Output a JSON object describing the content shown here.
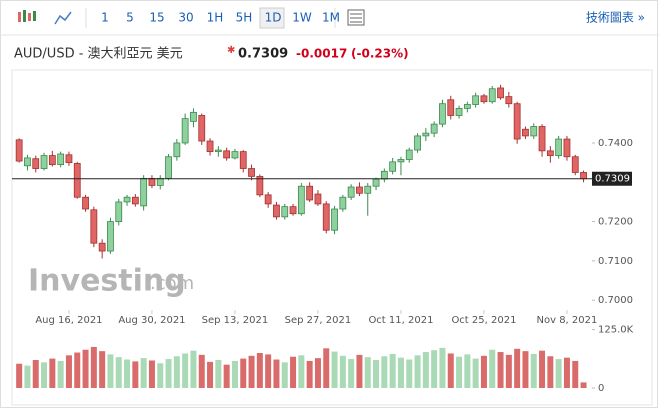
{
  "toolbar": {
    "intervals": [
      "1",
      "5",
      "15",
      "30",
      "1H",
      "5H",
      "1D",
      "1W",
      "1M"
    ],
    "selected": 6,
    "link": "技術圖表 »"
  },
  "header": {
    "symbol": "AUD/USD - 澳大利亞元 美元",
    "price": "0.7309",
    "change": "-0.0017",
    "change_pct": "(-0.23%)"
  },
  "watermark": {
    "brand": "Investing",
    "suffix": ".com"
  },
  "chart_data": {
    "type": "candlestick",
    "categories": [
      null,
      null,
      null,
      null,
      null,
      null,
      "Aug 16, 2021",
      null,
      null,
      null,
      null,
      null,
      null,
      null,
      null,
      null,
      "Aug 30, 2021",
      null,
      null,
      null,
      null,
      null,
      null,
      null,
      null,
      null,
      "Sep 13, 2021",
      null,
      null,
      null,
      null,
      null,
      null,
      null,
      null,
      null,
      "Sep 27, 2021",
      null,
      null,
      null,
      null,
      null,
      null,
      null,
      null,
      null,
      "Oct 11, 2021",
      null,
      null,
      null,
      null,
      null,
      null,
      null,
      null,
      null,
      "Oct 25, 2021",
      null,
      null,
      null,
      null,
      null,
      null,
      null,
      null,
      null,
      "Nov 8, 2021",
      null,
      null
    ],
    "open": [
      0.7408,
      0.7342,
      0.736,
      0.7335,
      0.7368,
      0.7345,
      0.737,
      0.7348,
      0.7262,
      0.723,
      0.7145,
      0.7125,
      0.72,
      0.725,
      0.7262,
      0.724,
      0.731,
      0.7292,
      0.731,
      0.7365,
      0.74,
      0.7455,
      0.747,
      0.7405,
      0.7378,
      0.738,
      0.7362,
      0.7378,
      0.7335,
      0.7315,
      0.7268,
      0.7242,
      0.7212,
      0.7238,
      0.722,
      0.729,
      0.727,
      0.7245,
      0.7178,
      0.7232,
      0.7262,
      0.7288,
      0.7272,
      0.729,
      0.7308,
      0.7328,
      0.7352,
      0.7358,
      0.7382,
      0.7418,
      0.7425,
      0.7448,
      0.751,
      0.747,
      0.7488,
      0.7498,
      0.752,
      0.7505,
      0.754,
      0.7518,
      0.75,
      0.7435,
      0.7418,
      0.7442,
      0.738,
      0.7368,
      0.741,
      0.7365,
      0.7325
    ],
    "high": [
      0.7412,
      0.737,
      0.7368,
      0.7375,
      0.738,
      0.7378,
      0.7378,
      0.7352,
      0.7268,
      0.7238,
      0.7155,
      0.721,
      0.7258,
      0.7268,
      0.727,
      0.7318,
      0.7318,
      0.7318,
      0.7372,
      0.741,
      0.7475,
      0.7488,
      0.7475,
      0.7412,
      0.7392,
      0.7388,
      0.7385,
      0.7382,
      0.7345,
      0.732,
      0.7275,
      0.725,
      0.7245,
      0.7245,
      0.7298,
      0.73,
      0.728,
      0.7252,
      0.724,
      0.7268,
      0.7295,
      0.73,
      0.7298,
      0.7312,
      0.7335,
      0.7362,
      0.7365,
      0.7388,
      0.7425,
      0.7438,
      0.7455,
      0.751,
      0.752,
      0.7495,
      0.7505,
      0.7528,
      0.7525,
      0.7545,
      0.7548,
      0.753,
      0.7505,
      0.7442,
      0.745,
      0.7448,
      0.7392,
      0.7418,
      0.7418,
      0.737,
      0.733
    ],
    "low": [
      0.735,
      0.733,
      0.7325,
      0.733,
      0.734,
      0.7338,
      0.7342,
      0.7258,
      0.7225,
      0.7135,
      0.7106,
      0.7118,
      0.719,
      0.724,
      0.7238,
      0.7228,
      0.7285,
      0.7282,
      0.7305,
      0.7355,
      0.7395,
      0.744,
      0.7395,
      0.7368,
      0.7365,
      0.7355,
      0.7358,
      0.7325,
      0.7305,
      0.7262,
      0.7235,
      0.7205,
      0.7205,
      0.7215,
      0.7215,
      0.725,
      0.724,
      0.717,
      0.7168,
      0.7225,
      0.7255,
      0.7265,
      0.7215,
      0.728,
      0.73,
      0.732,
      0.7318,
      0.735,
      0.7375,
      0.7405,
      0.7415,
      0.744,
      0.746,
      0.7462,
      0.7478,
      0.749,
      0.75,
      0.75,
      0.751,
      0.749,
      0.7398,
      0.741,
      0.741,
      0.7365,
      0.735,
      0.736,
      0.7355,
      0.7318,
      0.73
    ],
    "close": [
      0.7354,
      0.7362,
      0.7335,
      0.7368,
      0.7345,
      0.7372,
      0.735,
      0.7262,
      0.7232,
      0.7145,
      0.7125,
      0.72,
      0.725,
      0.7262,
      0.7245,
      0.731,
      0.7292,
      0.731,
      0.7365,
      0.74,
      0.7462,
      0.7478,
      0.7405,
      0.7378,
      0.7382,
      0.7362,
      0.7378,
      0.7335,
      0.7315,
      0.7268,
      0.7245,
      0.7212,
      0.7238,
      0.722,
      0.729,
      0.7255,
      0.7245,
      0.7178,
      0.7232,
      0.7262,
      0.7288,
      0.7272,
      0.729,
      0.7308,
      0.7328,
      0.7352,
      0.7358,
      0.7382,
      0.7418,
      0.7425,
      0.7448,
      0.75,
      0.747,
      0.7488,
      0.7498,
      0.752,
      0.7505,
      0.7538,
      0.7515,
      0.75,
      0.741,
      0.7418,
      0.7442,
      0.738,
      0.7368,
      0.741,
      0.7365,
      0.7325,
      0.7309
    ],
    "volume": [
      52000,
      48000,
      60000,
      55000,
      63000,
      58000,
      70000,
      76000,
      82000,
      88000,
      79000,
      72000,
      66000,
      61000,
      57000,
      64000,
      59000,
      53000,
      62000,
      68000,
      74000,
      80000,
      71000,
      56000,
      60000,
      50000,
      58000,
      63000,
      69000,
      75000,
      72000,
      61000,
      55000,
      67000,
      70000,
      58000,
      64000,
      85000,
      78000,
      69000,
      62000,
      71000,
      66000,
      60000,
      68000,
      73000,
      65000,
      61000,
      70000,
      77000,
      81000,
      86000,
      74000,
      67000,
      72000,
      63000,
      69000,
      82000,
      77000,
      71000,
      84000,
      79000,
      73000,
      80000,
      68000,
      62000,
      65000,
      58000,
      12000
    ],
    "ylim": [
      0.6975,
      0.7573
    ],
    "yticks": [
      {
        "value": 0.7,
        "label": "0.7000"
      },
      {
        "value": 0.71,
        "label": "0.7100"
      },
      {
        "value": 0.72,
        "label": "0.7200"
      },
      {
        "value": 0.74,
        "label": "0.7400"
      }
    ],
    "volume_lim": [
      0,
      150000
    ],
    "volume_ticks": [
      0,
      {
        "value": 125000,
        "label": "125.0K"
      }
    ],
    "up_color": "#8fd19e",
    "up_edge": "#3b8a4c",
    "down_color": "#e06666",
    "down_edge": "#a53030",
    "volume_up_color": "#a9d9b5",
    "volume_down_color": "#d96b6b"
  }
}
